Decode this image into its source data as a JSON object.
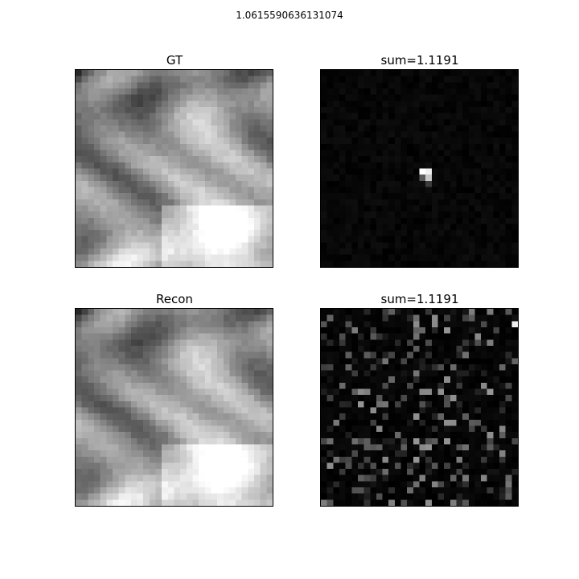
{
  "figure": {
    "suptitle": "1.0615590636131074"
  },
  "panels": [
    {
      "id": "gt",
      "title": "GT",
      "kind": "brain",
      "variant": 0
    },
    {
      "id": "gt-map",
      "title": "sum=1.1191",
      "kind": "sparse",
      "variant": 0
    },
    {
      "id": "recon",
      "title": "Recon",
      "kind": "brain",
      "variant": 1
    },
    {
      "id": "recon-map",
      "title": "sum=1.1191",
      "kind": "noise",
      "variant": 1
    }
  ]
}
